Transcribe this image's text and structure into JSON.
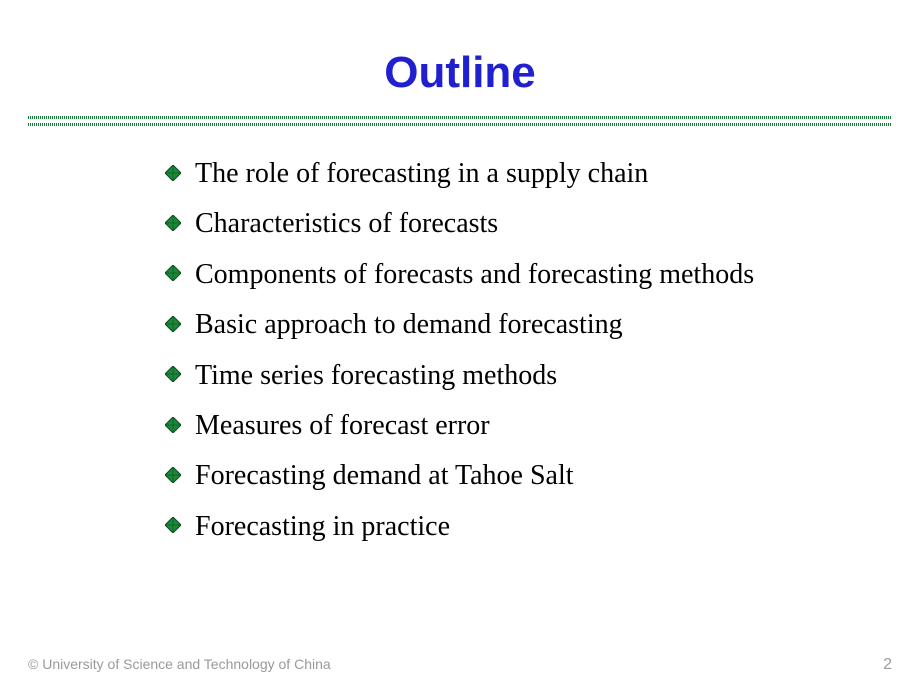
{
  "title": {
    "text": "Outline",
    "color": "#2020d0",
    "fontsize": 44
  },
  "divider": {
    "color": "#1a7a3a"
  },
  "bullet": {
    "fill": "#1a8a3a",
    "stroke": "#104a20",
    "size": 16
  },
  "items": [
    "The role of forecasting in a supply chain",
    "Characteristics of forecasts",
    "Components of forecasts and forecasting methods",
    "Basic approach to demand forecasting",
    "Time series forecasting methods",
    "Measures of forecast error",
    "Forecasting demand at Tahoe Salt",
    "Forecasting in practice"
  ],
  "footer": {
    "copyright": "© University of Science and Technology of China",
    "page": "2"
  },
  "background_color": "#ffffff",
  "text_color": "#000000"
}
